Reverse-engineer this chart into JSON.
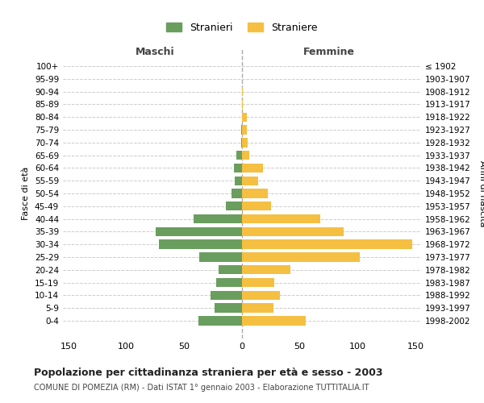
{
  "age_groups": [
    "0-4",
    "5-9",
    "10-14",
    "15-19",
    "20-24",
    "25-29",
    "30-34",
    "35-39",
    "40-44",
    "45-49",
    "50-54",
    "55-59",
    "60-64",
    "65-69",
    "70-74",
    "75-79",
    "80-84",
    "85-89",
    "90-94",
    "95-99",
    "100+"
  ],
  "birth_years": [
    "1998-2002",
    "1993-1997",
    "1988-1992",
    "1983-1987",
    "1978-1982",
    "1973-1977",
    "1968-1972",
    "1963-1967",
    "1958-1962",
    "1953-1957",
    "1948-1952",
    "1943-1947",
    "1938-1942",
    "1933-1937",
    "1928-1932",
    "1923-1927",
    "1918-1922",
    "1913-1917",
    "1908-1912",
    "1903-1907",
    "≤ 1902"
  ],
  "maschi": [
    38,
    24,
    27,
    22,
    20,
    37,
    72,
    75,
    42,
    14,
    9,
    6,
    7,
    5,
    1,
    1,
    0,
    0,
    0,
    0,
    0
  ],
  "femmine": [
    55,
    27,
    33,
    28,
    42,
    102,
    147,
    88,
    68,
    25,
    22,
    14,
    18,
    6,
    5,
    4,
    4,
    1,
    1,
    0,
    0
  ],
  "color_maschi": "#6a9e5e",
  "color_femmine": "#f5bf42",
  "title": "Popolazione per cittadinanza straniera per età e sesso - 2003",
  "subtitle": "COMUNE DI POMEZIA (RM) - Dati ISTAT 1° gennaio 2003 - Elaborazione TUTTITALIA.IT",
  "ylabel_left": "Fasce di età",
  "ylabel_right": "Anni di nascita",
  "xlabel_left": "Maschi",
  "xlabel_right": "Femmine",
  "legend_maschi": "Stranieri",
  "legend_femmine": "Straniere",
  "xlim": 155,
  "background_color": "#ffffff",
  "grid_color": "#cccccc"
}
